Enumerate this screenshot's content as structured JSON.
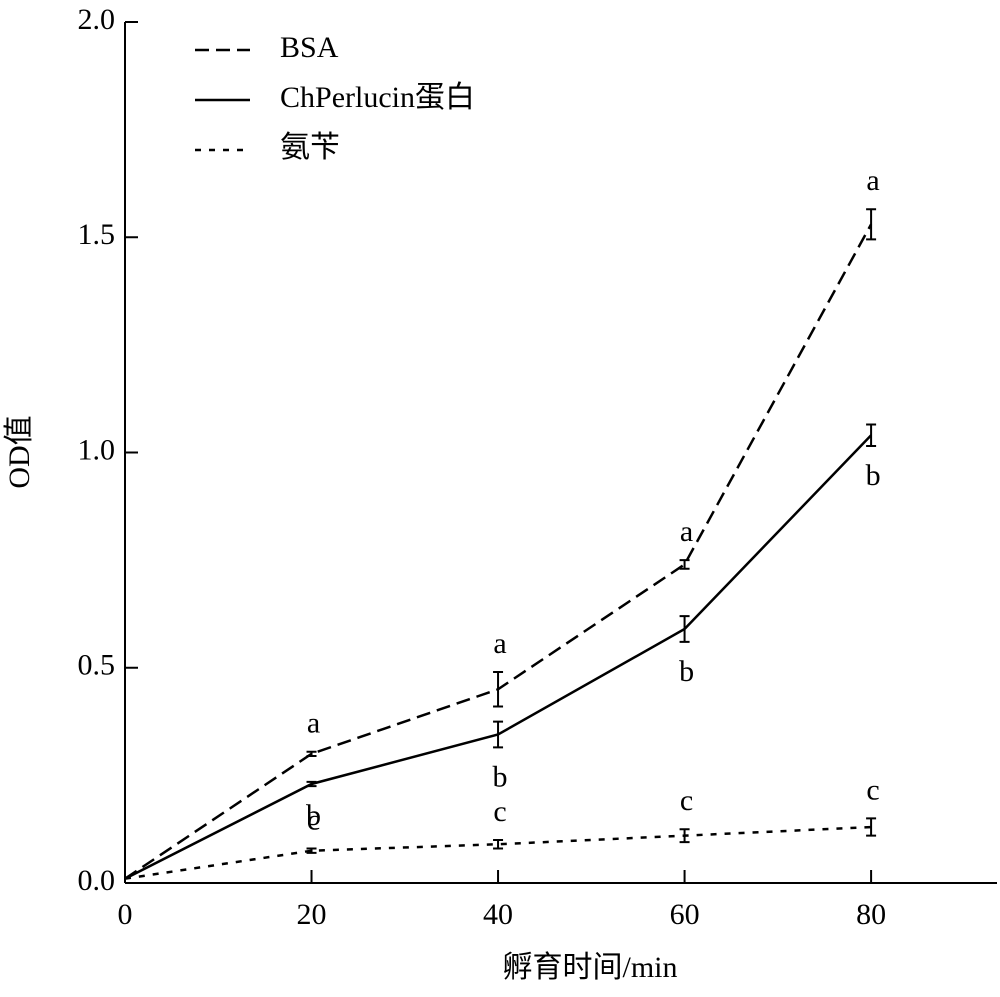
{
  "chart_data": {
    "type": "line",
    "xlabel": "孵育时间/min",
    "ylabel": "OD值",
    "x": [
      0,
      20,
      40,
      60,
      80
    ],
    "series": [
      {
        "name": "BSA",
        "color": "#000000",
        "dash": "dashed",
        "values": [
          0.01,
          0.3,
          0.45,
          0.74,
          1.53
        ],
        "errors": [
          null,
          0.005,
          0.04,
          0.01,
          0.035
        ],
        "letters": [
          null,
          "a",
          "a",
          "a",
          "a"
        ]
      },
      {
        "name": "ChPerlucin蛋白",
        "color": "#000000",
        "dash": "solid",
        "values": [
          0.01,
          0.23,
          0.345,
          0.59,
          1.04
        ],
        "errors": [
          null,
          0.005,
          0.03,
          0.03,
          0.025
        ],
        "letters": [
          null,
          "b",
          "b",
          "b",
          "b"
        ]
      },
      {
        "name": "氨苄",
        "color": "#000000",
        "dash": "dotted",
        "values": [
          0.01,
          0.075,
          0.09,
          0.11,
          0.13
        ],
        "errors": [
          null,
          0.005,
          0.01,
          0.015,
          0.02
        ],
        "letters": [
          null,
          "c",
          "c",
          "c",
          "c"
        ]
      }
    ],
    "xlim": [
      0,
      93.5
    ],
    "ylim": [
      0,
      2.0
    ],
    "xticks": [
      0,
      20,
      40,
      60,
      80
    ],
    "yticks": [
      {
        "value": 0,
        "label": "0.0"
      },
      {
        "value": 0.5,
        "label": "0.5"
      },
      {
        "value": 1.0,
        "label": "1.0"
      },
      {
        "value": 1.5,
        "label": "1.5"
      },
      {
        "value": 2.0,
        "label": "2.0"
      }
    ],
    "legend": "upper left"
  }
}
